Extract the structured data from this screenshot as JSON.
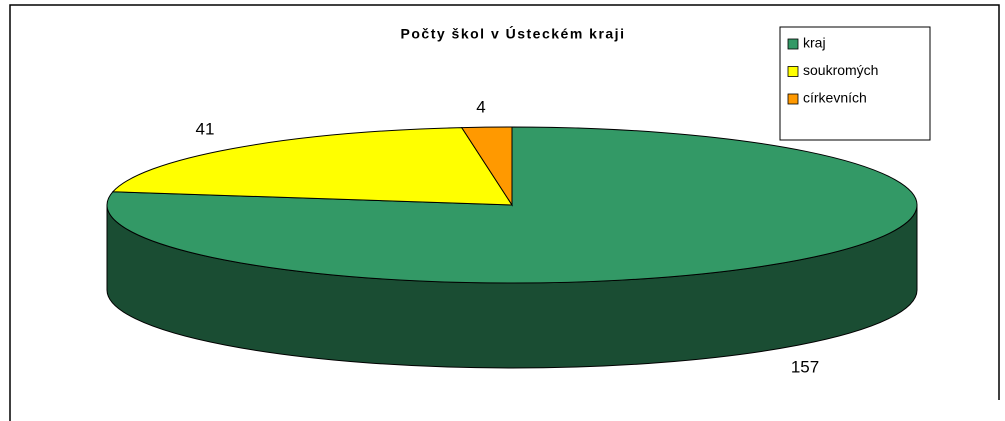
{
  "chart_data": {
    "type": "pie",
    "title": "Počty škol v Ústeckém kraji",
    "categories": [
      "kraj",
      "soukromých",
      "církevních"
    ],
    "values": [
      157,
      41,
      4
    ],
    "colors": [
      "#339966",
      "#ffff00",
      "#ff9900"
    ],
    "legend": "top-right"
  }
}
